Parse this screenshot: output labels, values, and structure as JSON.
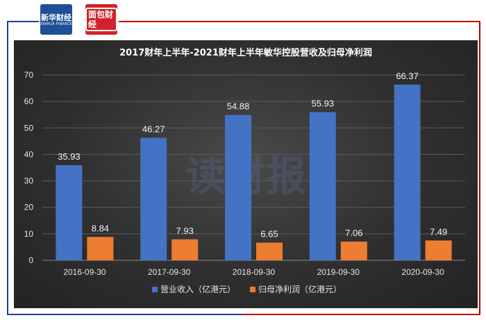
{
  "logos": {
    "xinhua": {
      "main": "新华财经",
      "sub": "XINHUA FINANCE"
    },
    "mian": {
      "main": "面包财经"
    }
  },
  "colors": {
    "revenue": "#4472c4",
    "profit": "#ed7d31",
    "frame_blue": "#1f3f8f",
    "frame_red": "#c00000"
  },
  "watermark": "读财报",
  "chart_data": {
    "type": "bar",
    "title": "2017财年上半年-2021财年上半年敏华控股营收及归母净利润",
    "categories": [
      "2016-09-30",
      "2017-09-30",
      "2018-09-30",
      "2019-09-30",
      "2020-09-30"
    ],
    "series": [
      {
        "name": "营业收入（亿港元）",
        "values": [
          35.93,
          46.27,
          54.88,
          55.93,
          66.37
        ],
        "color": "#4472c4"
      },
      {
        "name": "归母净利润（亿港元）",
        "values": [
          8.84,
          7.93,
          6.65,
          7.06,
          7.49
        ],
        "color": "#ed7d31"
      }
    ],
    "ylim": [
      0,
      70
    ],
    "yticks": [
      "0",
      "10",
      "20",
      "30",
      "40",
      "50",
      "60",
      "70"
    ],
    "data_labels": [
      [
        "35.93",
        "46.27",
        "54.88",
        "55.93",
        "66.37"
      ],
      [
        "8.84",
        "7.93",
        "6.65",
        "7.06",
        "7.49"
      ]
    ],
    "grid": true,
    "legend_position": "bottom"
  }
}
